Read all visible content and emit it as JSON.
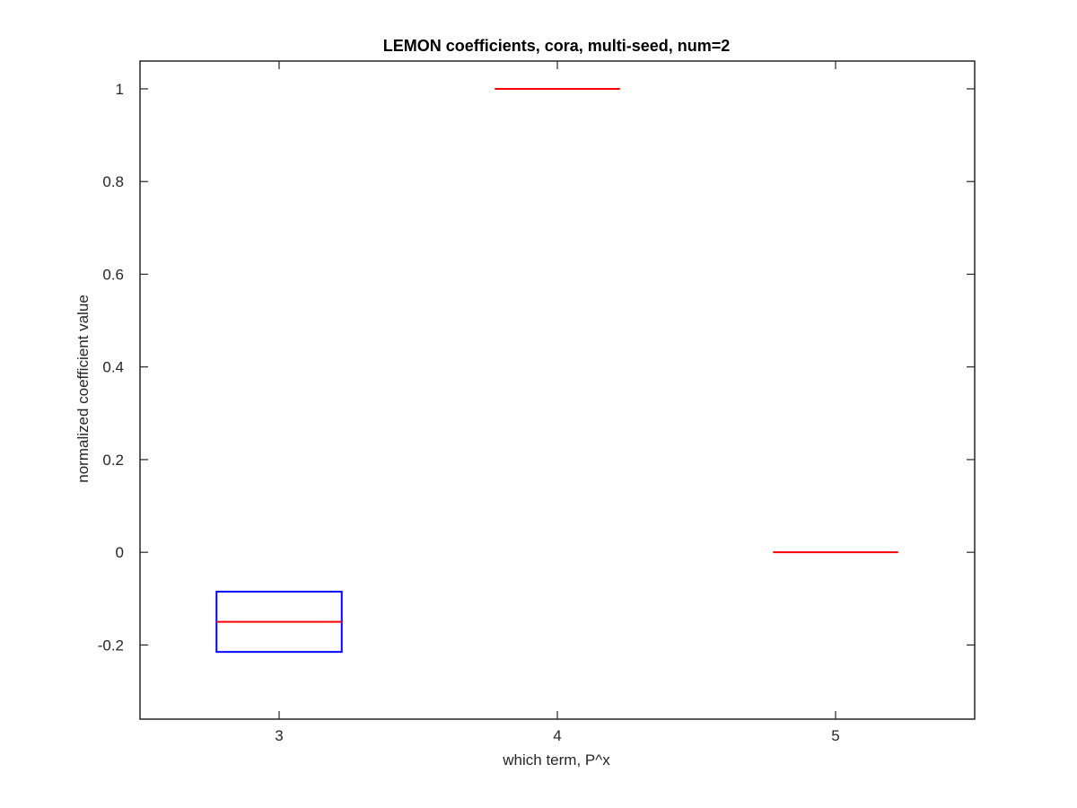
{
  "chart_data": {
    "type": "box",
    "title": "LEMON coefficients, cora, multi-seed, num=2",
    "xlabel": "which term, P^x",
    "ylabel": "normalized coefficient value",
    "categories": [
      "3",
      "4",
      "5"
    ],
    "xlim": [
      2.5,
      5.5
    ],
    "ylim": [
      -0.36,
      1.06
    ],
    "yticks": [
      -0.2,
      0,
      0.2,
      0.4,
      0.6,
      0.8,
      1
    ],
    "ytick_labels": [
      "-0.2",
      "0",
      "0.2",
      "0.4",
      "0.6",
      "0.8",
      "1"
    ],
    "grid": false,
    "boxes": [
      {
        "category": "3",
        "q1": -0.215,
        "median": -0.15,
        "q3": -0.085
      },
      {
        "category": "4",
        "q1": 1.0,
        "median": 1.0,
        "q3": 1.0
      },
      {
        "category": "5",
        "q1": 0.0,
        "median": 0.0,
        "q3": 0.0
      }
    ],
    "colors": {
      "box": "#0000ff",
      "median": "#ff0000",
      "axes": "#262626"
    }
  }
}
